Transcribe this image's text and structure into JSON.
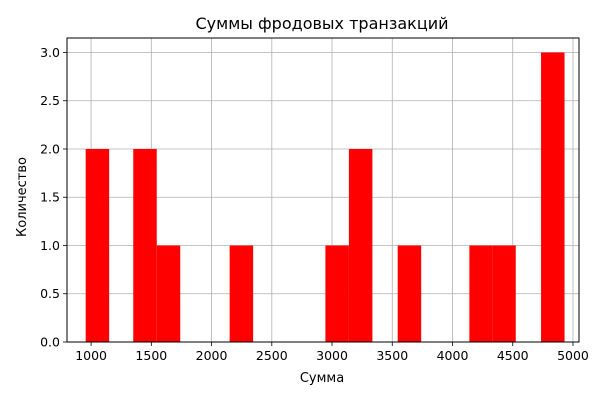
{
  "chart_data": {
    "type": "bar",
    "title": "Суммы фродовых транзакций",
    "xlabel": "Сумма",
    "ylabel": "Количество",
    "xlim": [
      800,
      5050
    ],
    "ylim": [
      0,
      3.15
    ],
    "xticks": [
      1000,
      1500,
      2000,
      2500,
      3000,
      3500,
      4000,
      4500,
      5000
    ],
    "yticks": [
      0.0,
      0.5,
      1.0,
      1.5,
      2.0,
      2.5,
      3.0
    ],
    "xtick_labels": [
      "1000",
      "1500",
      "2000",
      "2500",
      "3000",
      "3500",
      "4000",
      "4500",
      "5000"
    ],
    "ytick_labels": [
      "0.0",
      "0.5",
      "1.0",
      "1.5",
      "2.0",
      "2.5",
      "3.0"
    ],
    "grid": true,
    "bar_color": "#ff0000",
    "bins": [
      {
        "x0": 955,
        "x1": 1150,
        "count": 2
      },
      {
        "x0": 1350,
        "x1": 1545,
        "count": 2
      },
      {
        "x0": 1545,
        "x1": 1740,
        "count": 1
      },
      {
        "x0": 2150,
        "x1": 2345,
        "count": 1
      },
      {
        "x0": 2945,
        "x1": 3140,
        "count": 1
      },
      {
        "x0": 3140,
        "x1": 3335,
        "count": 2
      },
      {
        "x0": 3545,
        "x1": 3740,
        "count": 1
      },
      {
        "x0": 4140,
        "x1": 4335,
        "count": 1
      },
      {
        "x0": 4335,
        "x1": 4525,
        "count": 1
      },
      {
        "x0": 4735,
        "x1": 4930,
        "count": 3
      }
    ]
  }
}
